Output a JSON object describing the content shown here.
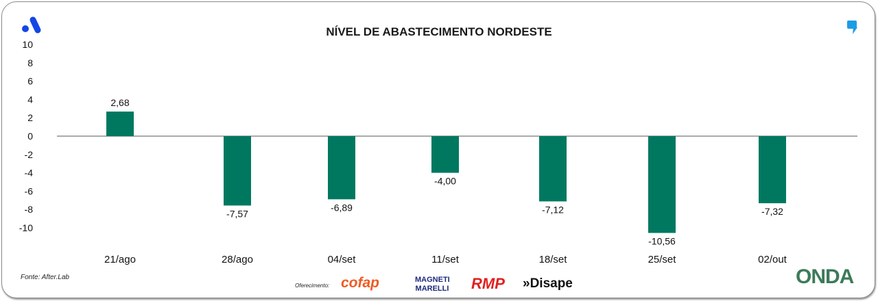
{
  "chart_data": {
    "type": "bar",
    "title": "NÍVEL DE ABASTECIMENTO NORDESTE",
    "categories": [
      "21/ago",
      "28/ago",
      "04/set",
      "11/set",
      "18/set",
      "25/set",
      "02/out"
    ],
    "values": [
      2.68,
      -7.57,
      -6.89,
      -4.0,
      -7.12,
      -10.56,
      -7.32
    ],
    "data_labels": [
      "2,68",
      "-7,57",
      "-6,89",
      "-4,00",
      "-7,12",
      "-10,56",
      "-7,32"
    ],
    "yticks": [
      "10",
      "8",
      "6",
      "4",
      "2",
      "0",
      "-2",
      "-4",
      "-6",
      "-8",
      "-10"
    ],
    "ylim": [
      -10,
      10
    ],
    "grid": false,
    "bar_color": "#007860"
  },
  "footer": {
    "source": "Fonte: After.Lab",
    "sponsor_label": "Oferecimento:",
    "sponsors": [
      "cofap",
      "MAGNETI MARELLI",
      "RMP",
      "»Disape"
    ],
    "onda_logo": "ONDA"
  },
  "colors": {
    "logo_left": "#1446e6",
    "logo_right": "#1e9be6"
  }
}
